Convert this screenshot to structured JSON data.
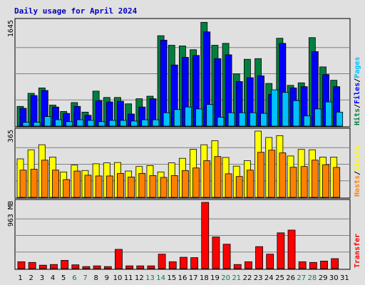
{
  "chart_data": {
    "type": "bar",
    "title": "Daily usage for April 2024",
    "days": [
      "1",
      "2",
      "3",
      "4",
      "5",
      "6",
      "7",
      "8",
      "9",
      "10",
      "11",
      "12",
      "13",
      "14",
      "15",
      "16",
      "17",
      "18",
      "19",
      "20",
      "21",
      "22",
      "23",
      "24",
      "25",
      "26",
      "27",
      "28",
      "29",
      "30",
      "31"
    ],
    "weekend_days": [
      "6",
      "7",
      "13",
      "14",
      "20",
      "21",
      "27",
      "28"
    ],
    "colors": {
      "hits": "#008040",
      "files": "#0000ff",
      "pages": "#00c0ff",
      "visits": "#ffff00",
      "sites": "#ff8000",
      "kbytes": "#ff0000",
      "title": "#0000c0",
      "weekend": "#00805c",
      "weekday": "#000000",
      "background": "#e0e0e0",
      "plot_bg": "#e0e0e0"
    },
    "panels": [
      {
        "name": "Hits/Files/Pages",
        "max_label": "1645",
        "ylim": [
          0,
          1645
        ],
        "side_labels": [
          {
            "text": "Hits",
            "color": "#008040"
          },
          {
            "text": "/",
            "color": "#000000"
          },
          {
            "text": "Files",
            "color": "#0000ff"
          },
          {
            "text": "/",
            "color": "#000000"
          },
          {
            "text": "Pages",
            "color": "#00c0ff"
          }
        ],
        "series": [
          {
            "name": "Hits",
            "color": "#008040",
            "values": [
              310,
              515,
              600,
              330,
              230,
              370,
              220,
              550,
              450,
              450,
              350,
              430,
              470,
              1420,
              1270,
              1260,
              1200,
              1630,
              1270,
              1300,
              820,
              1050,
              1060,
              670,
              1380,
              640,
              680,
              1390,
              930,
              720
            ]
          },
          {
            "name": "Files",
            "color": "#0000ff",
            "values": [
              280,
              480,
              560,
              300,
              200,
              310,
              170,
              400,
              380,
              390,
              190,
              300,
              430,
              1350,
              960,
              1080,
              1110,
              1480,
              1060,
              1120,
              700,
              760,
              790,
              500,
              1300,
              600,
              620,
              1170,
              810,
              620
            ]
          },
          {
            "name": "Pages",
            "color": "#00c0ff",
            "values": [
              60,
              60,
              150,
              100,
              70,
              100,
              90,
              70,
              90,
              90,
              80,
              100,
              100,
              210,
              260,
              300,
              270,
              340,
              140,
              210,
              210,
              210,
              200,
              570,
              530,
              400,
              160,
              270,
              380,
              220
            ]
          }
        ]
      },
      {
        "name": "Hosts/Visits",
        "max_label": "365",
        "ylim": [
          0,
          365
        ],
        "side_labels": [
          {
            "text": "Hosts",
            "color": "#ff8000"
          },
          {
            "text": "/",
            "color": "#000000"
          },
          {
            "text": "Visits",
            "color": "#ffff00"
          }
        ],
        "series": [
          {
            "name": "Visits",
            "color": "#ffff00",
            "values": [
              212,
              262,
              290,
              222,
              140,
              178,
              148,
              185,
              190,
              192,
              145,
              170,
              175,
              140,
              190,
              215,
              265,
              290,
              312,
              220,
              172,
              202,
              365,
              330,
              340,
              228,
              264,
              262,
              222,
              222
            ]
          },
          {
            "name": "Hosts",
            "color": "#ff8000",
            "values": [
              150,
              155,
              205,
              150,
              98,
              145,
              122,
              118,
              118,
              132,
              112,
              132,
              120,
              110,
              120,
              148,
              162,
              202,
              225,
              130,
              115,
              150,
              248,
              260,
              245,
              166,
              170,
              205,
              180,
              165
            ]
          }
        ]
      },
      {
        "name": "Transfer",
        "max_label": "963 MB",
        "ylim": [
          0,
          963
        ],
        "side_labels": [
          {
            "text": "Transfer",
            "color": "#ff0000"
          }
        ],
        "series": [
          {
            "name": "KBytes",
            "color": "#ff0000",
            "values": [
              100,
              90,
              50,
              60,
              120,
              55,
              30,
              40,
              30,
              280,
              40,
              40,
              40,
              210,
              100,
              165,
              160,
              963,
              460,
              355,
              60,
              100,
              320,
              210,
              520,
              560,
              100,
              90,
              110,
              145
            ]
          }
        ]
      }
    ]
  }
}
